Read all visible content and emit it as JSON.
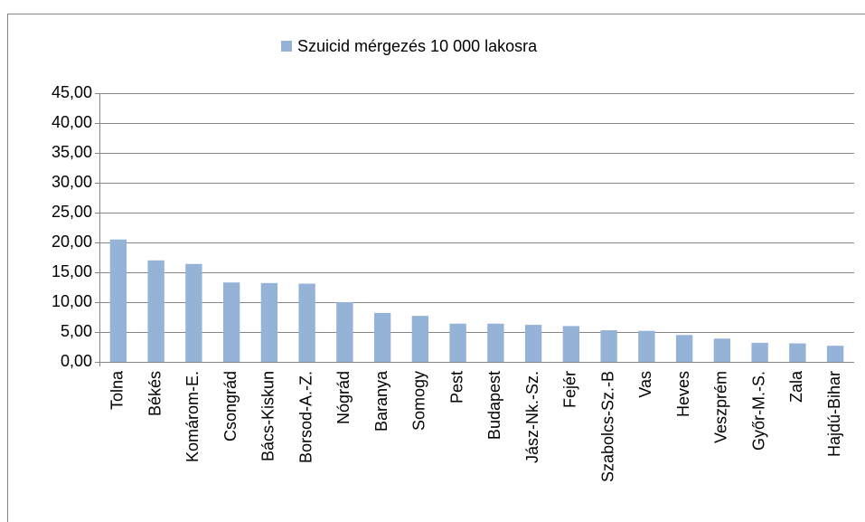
{
  "chart_data": {
    "type": "bar",
    "legend": "Szuicid mérgezés 10 000 lakosra",
    "color": "#95b3d7",
    "categories": [
      "Tolna",
      "Békés",
      "Komárom-E.",
      "Csongrád",
      "Bács-Kiskun",
      "Borsod-A.-Z.",
      "Nógrád",
      "Baranya",
      "Somogy",
      "Pest",
      "Budapest",
      "Jász-Nk.-Sz.",
      "Fejér",
      "Szabolcs-Sz.-B",
      "Vas",
      "Heves",
      "Veszprém",
      "Győr-M.-S.",
      "Zala",
      "Hajdú-Bihar"
    ],
    "values": [
      20.5,
      17.0,
      16.4,
      13.3,
      13.2,
      13.1,
      10.0,
      8.2,
      7.7,
      6.4,
      6.4,
      6.2,
      6.0,
      5.3,
      5.2,
      4.5,
      3.9,
      3.2,
      3.1,
      2.7
    ],
    "ylim": [
      0,
      45
    ],
    "yticks": [
      {
        "value": 0,
        "label": "0,00"
      },
      {
        "value": 5,
        "label": "5,00"
      },
      {
        "value": 10,
        "label": "10,00"
      },
      {
        "value": 15,
        "label": "15,00"
      },
      {
        "value": 20,
        "label": "20,00"
      },
      {
        "value": 25,
        "label": "25,00"
      },
      {
        "value": 30,
        "label": "30,00"
      },
      {
        "value": 35,
        "label": "35,00"
      },
      {
        "value": 40,
        "label": "40,00"
      },
      {
        "value": 45,
        "label": "45,00"
      }
    ],
    "grid": true
  }
}
